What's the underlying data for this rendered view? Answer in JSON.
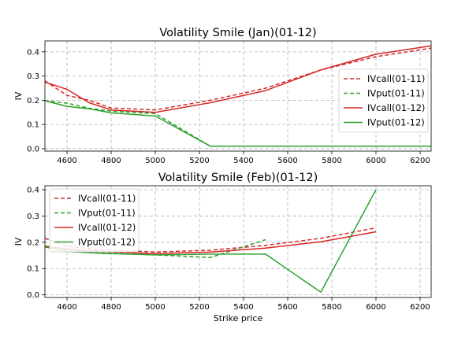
{
  "chart_data": [
    {
      "type": "line",
      "title": "Volatility Smile (Jan)(01-12)",
      "xlabel": "",
      "ylabel": "IV",
      "xlim": [
        4500,
        6250
      ],
      "ylim": [
        -0.01,
        0.445
      ],
      "xticks": [
        4600,
        4800,
        5000,
        5200,
        5400,
        5600,
        5800,
        6000,
        6200
      ],
      "yticks": [
        0.0,
        0.1,
        0.2,
        0.3,
        0.4
      ],
      "grid": true,
      "legend_position": "center-right",
      "series": [
        {
          "name": "IVcall(01-11)",
          "color": "#d62728",
          "dash": true,
          "x": [
            4500,
            4600,
            4700,
            4800,
            5000,
            5250,
            5500,
            5750,
            6000,
            6250
          ],
          "y": [
            0.28,
            0.22,
            0.2,
            0.168,
            0.16,
            0.2,
            0.25,
            0.325,
            0.38,
            0.415
          ]
        },
        {
          "name": "IVput(01-11)",
          "color": "#2ca02c",
          "dash": true,
          "x": [
            4500,
            4600,
            4700,
            4800,
            5000,
            5250,
            5500,
            5750,
            6000,
            6250
          ],
          "y": [
            0.198,
            0.188,
            0.167,
            0.155,
            0.145,
            0.01,
            0.01,
            0.01,
            0.01,
            0.01
          ]
        },
        {
          "name": "IVcall(01-12)",
          "color": "#d62728",
          "dash": false,
          "x": [
            4500,
            4600,
            4700,
            4800,
            5000,
            5250,
            5500,
            5750,
            6000,
            6250
          ],
          "y": [
            0.275,
            0.245,
            0.19,
            0.16,
            0.15,
            0.19,
            0.24,
            0.325,
            0.39,
            0.425
          ]
        },
        {
          "name": "IVput(01-12)",
          "color": "#2ca02c",
          "dash": false,
          "x": [
            4500,
            4600,
            4700,
            4800,
            5000,
            5250,
            5500,
            5750,
            6000,
            6250
          ],
          "y": [
            0.198,
            0.175,
            0.165,
            0.148,
            0.135,
            0.01,
            0.01,
            0.01,
            0.01,
            0.01
          ]
        }
      ]
    },
    {
      "type": "line",
      "title": "Volatility Smile (Feb)(01-12)",
      "xlabel": "Strike price",
      "ylabel": "IV",
      "xlim": [
        4500,
        6250
      ],
      "ylim": [
        -0.01,
        0.415
      ],
      "xticks": [
        4600,
        4800,
        5000,
        5200,
        5400,
        5600,
        5800,
        6000,
        6200
      ],
      "yticks": [
        0.0,
        0.1,
        0.2,
        0.3,
        0.4
      ],
      "grid": true,
      "legend_position": "top-left",
      "series": [
        {
          "name": "IVcall(01-11)",
          "color": "#d62728",
          "dash": true,
          "x": [
            4500,
            4600,
            4750,
            5000,
            5250,
            5500,
            5750,
            6000
          ],
          "y": [
            0.215,
            0.185,
            0.172,
            0.163,
            0.17,
            0.188,
            0.215,
            0.255
          ]
        },
        {
          "name": "IVput(01-11)",
          "color": "#2ca02c",
          "dash": true,
          "x": [
            4500,
            4600,
            4750,
            5000,
            5250,
            5500
          ],
          "y": [
            0.185,
            0.17,
            0.16,
            0.152,
            0.142,
            0.21
          ]
        },
        {
          "name": "IVcall(01-12)",
          "color": "#d62728",
          "dash": false,
          "x": [
            4500,
            4600,
            4750,
            5000,
            5250,
            5500,
            5750,
            6000
          ],
          "y": [
            0.185,
            0.175,
            0.165,
            0.157,
            0.163,
            0.178,
            0.202,
            0.24
          ]
        },
        {
          "name": "IVput(01-12)",
          "color": "#2ca02c",
          "dash": false,
          "x": [
            4500,
            4600,
            4750,
            5000,
            5250,
            5500,
            5750,
            6000
          ],
          "y": [
            0.182,
            0.165,
            0.158,
            0.152,
            0.155,
            0.155,
            0.01,
            0.4
          ]
        }
      ]
    }
  ]
}
